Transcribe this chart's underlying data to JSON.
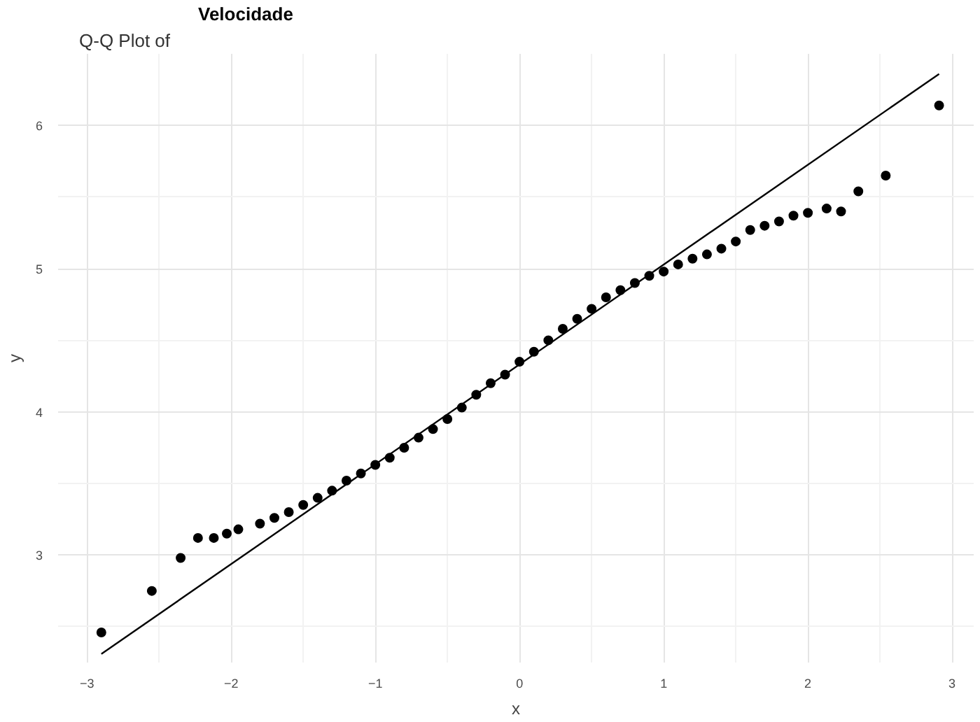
{
  "chart_data": {
    "type": "scatter",
    "title": "Q-Q Plot of",
    "subtitle": "Velocidade",
    "xlabel": "x",
    "ylabel": "y",
    "xlim": [
      -3.2,
      3.15
    ],
    "ylim": [
      2.25,
      6.5
    ],
    "xticks": [
      -3,
      -2,
      -1,
      0,
      1,
      2,
      3
    ],
    "yticks": [
      3,
      4,
      5,
      6
    ],
    "grid": true,
    "marker": "circle",
    "series": [
      {
        "color": "#000000",
        "x": [
          -2.9,
          -2.55,
          -2.35,
          -2.23,
          -2.12,
          -2.03,
          -1.95,
          -1.8,
          -1.7,
          -1.6,
          -1.5,
          -1.4,
          -1.3,
          -1.2,
          -1.1,
          -1.0,
          -0.9,
          -0.8,
          -0.7,
          -0.6,
          -0.5,
          -0.4,
          -0.3,
          -0.2,
          -0.1,
          0.0,
          0.1,
          0.2,
          0.3,
          0.4,
          0.5,
          0.6,
          0.7,
          0.8,
          0.9,
          1.0,
          1.1,
          1.2,
          1.3,
          1.4,
          1.5,
          1.6,
          1.7,
          1.8,
          1.9,
          2.0,
          2.13,
          2.23,
          2.35,
          2.54,
          2.91
        ],
        "values": [
          2.46,
          2.75,
          2.98,
          3.12,
          3.12,
          3.15,
          3.18,
          3.22,
          3.26,
          3.3,
          3.35,
          3.4,
          3.45,
          3.52,
          3.57,
          3.63,
          3.68,
          3.75,
          3.82,
          3.88,
          3.95,
          4.03,
          4.12,
          4.2,
          4.26,
          4.35,
          4.42,
          4.5,
          4.58,
          4.65,
          4.72,
          4.8,
          4.85,
          4.9,
          4.95,
          4.98,
          5.03,
          5.07,
          5.1,
          5.14,
          5.19,
          5.27,
          5.3,
          5.33,
          5.37,
          5.39,
          5.42,
          5.4,
          5.54,
          5.65,
          6.14
        ]
      },
      {
        "type": "line",
        "marker": "none",
        "color": "#000000",
        "x": [
          -2.9,
          2.91
        ],
        "values": [
          2.31,
          6.36
        ]
      }
    ]
  }
}
